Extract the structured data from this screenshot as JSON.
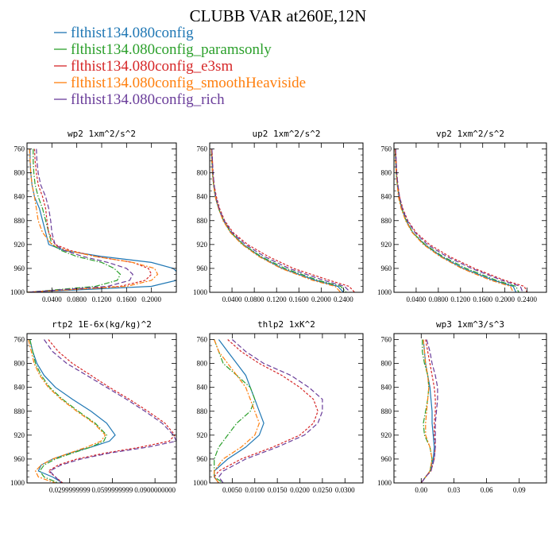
{
  "figure": {
    "title": "CLUBB VAR at260E,12N"
  },
  "chart_data": {
    "type": "line",
    "title": "CLUBB VAR at260E,12N",
    "legend": {
      "placement": "top-left",
      "entries": [
        {
          "name": "flthist134.080config",
          "color": "#1f77b4"
        },
        {
          "name": "flthist134.080config_paramsonly",
          "color": "#2ca02c"
        },
        {
          "name": "flthist134.080config_e3sm",
          "color": "#d62728"
        },
        {
          "name": "flthist134.080config_smoothHeaviside",
          "color": "#ff7f0e"
        },
        {
          "name": "flthist134.080config_rich",
          "color": "#6a3d9a"
        }
      ]
    },
    "y_axis": {
      "label": "",
      "range": [
        1000,
        750
      ],
      "ticks": [
        760,
        800,
        840,
        880,
        920,
        960,
        1000
      ]
    },
    "panels": [
      {
        "title": "wp2   1xm^2/s^2",
        "xlim": [
          0,
          0.24
        ],
        "xticks": [
          {
            "v": 0.04,
            "label": "0.0400"
          },
          {
            "v": 0.08,
            "label": "0.0800"
          },
          {
            "v": 0.12,
            "label": "0.1200"
          },
          {
            "v": 0.16,
            "label": "0.1600"
          },
          {
            "v": 0.2,
            "label": "0.2000"
          }
        ],
        "y": [
          760,
          780,
          800,
          820,
          840,
          860,
          880,
          900,
          920,
          930,
          940,
          950,
          960,
          970,
          980,
          990,
          1000
        ],
        "series": [
          {
            "values": [
              0.005,
              0.005,
              0.006,
              0.008,
              0.012,
              0.02,
              0.025,
              0.03,
              0.035,
              0.06,
              0.12,
              0.2,
              0.235,
              0.245,
              0.24,
              0.2,
              0.0
            ]
          },
          {
            "values": [
              0.01,
              0.01,
              0.011,
              0.013,
              0.018,
              0.025,
              0.03,
              0.035,
              0.04,
              0.055,
              0.08,
              0.12,
              0.14,
              0.15,
              0.145,
              0.11,
              0.0
            ]
          },
          {
            "values": [
              0.012,
              0.013,
              0.015,
              0.018,
              0.025,
              0.03,
              0.032,
              0.035,
              0.045,
              0.07,
              0.11,
              0.17,
              0.195,
              0.2,
              0.19,
              0.15,
              0.0
            ]
          },
          {
            "values": [
              0.004,
              0.005,
              0.006,
              0.008,
              0.012,
              0.015,
              0.018,
              0.025,
              0.04,
              0.065,
              0.11,
              0.17,
              0.205,
              0.21,
              0.2,
              0.16,
              0.0
            ]
          },
          {
            "values": [
              0.015,
              0.016,
              0.018,
              0.022,
              0.03,
              0.035,
              0.038,
              0.04,
              0.045,
              0.06,
              0.09,
              0.13,
              0.16,
              0.17,
              0.165,
              0.13,
              0.0
            ]
          }
        ]
      },
      {
        "title": "up2   1xm^2/s^2",
        "xlim": [
          0,
          0.275
        ],
        "xticks": [
          {
            "v": 0.04,
            "label": "0.0400"
          },
          {
            "v": 0.08,
            "label": "0.0800"
          },
          {
            "v": 0.12,
            "label": "0.1200"
          },
          {
            "v": 0.16,
            "label": "0.1600"
          },
          {
            "v": 0.2,
            "label": "0.2000"
          },
          {
            "v": 0.24,
            "label": "0.2400"
          }
        ],
        "y": [
          760,
          780,
          800,
          820,
          840,
          860,
          880,
          900,
          920,
          940,
          960,
          980,
          990,
          1000
        ],
        "series": [
          {
            "values": [
              0.003,
              0.004,
              0.005,
              0.007,
              0.01,
              0.016,
              0.025,
              0.038,
              0.06,
              0.09,
              0.13,
              0.19,
              0.23,
              0.24
            ]
          },
          {
            "values": [
              0.003,
              0.004,
              0.005,
              0.007,
              0.01,
              0.016,
              0.025,
              0.038,
              0.06,
              0.092,
              0.135,
              0.195,
              0.235,
              0.245
            ]
          },
          {
            "values": [
              0.004,
              0.005,
              0.006,
              0.008,
              0.012,
              0.018,
              0.027,
              0.042,
              0.068,
              0.105,
              0.15,
              0.215,
              0.25,
              0.26
            ]
          },
          {
            "values": [
              0.003,
              0.004,
              0.005,
              0.007,
              0.01,
              0.016,
              0.024,
              0.037,
              0.058,
              0.088,
              0.128,
              0.185,
              0.225,
              0.235
            ]
          },
          {
            "values": [
              0.004,
              0.005,
              0.006,
              0.008,
              0.011,
              0.017,
              0.026,
              0.04,
              0.064,
              0.098,
              0.142,
              0.205,
              0.242,
              0.252
            ]
          }
        ]
      },
      {
        "title": "vp2   1xm^2/s^2",
        "xlim": [
          0,
          0.275
        ],
        "xticks": [
          {
            "v": 0.04,
            "label": "0.0400"
          },
          {
            "v": 0.08,
            "label": "0.0800"
          },
          {
            "v": 0.12,
            "label": "0.1200"
          },
          {
            "v": 0.16,
            "label": "0.1600"
          },
          {
            "v": 0.2,
            "label": "0.2000"
          },
          {
            "v": 0.24,
            "label": "0.2400"
          }
        ],
        "y": [
          760,
          780,
          800,
          820,
          840,
          860,
          880,
          900,
          920,
          940,
          960,
          980,
          990,
          1000
        ],
        "series": [
          {
            "values": [
              0.002,
              0.003,
              0.004,
              0.006,
              0.009,
              0.014,
              0.022,
              0.034,
              0.055,
              0.085,
              0.125,
              0.18,
              0.215,
              0.22
            ]
          },
          {
            "values": [
              0.002,
              0.003,
              0.004,
              0.006,
              0.009,
              0.014,
              0.022,
              0.034,
              0.056,
              0.088,
              0.13,
              0.185,
              0.22,
              0.225
            ]
          },
          {
            "values": [
              0.003,
              0.004,
              0.005,
              0.007,
              0.01,
              0.016,
              0.025,
              0.04,
              0.064,
              0.1,
              0.145,
              0.2,
              0.235,
              0.24
            ]
          },
          {
            "values": [
              0.002,
              0.003,
              0.004,
              0.006,
              0.008,
              0.013,
              0.021,
              0.033,
              0.053,
              0.083,
              0.122,
              0.175,
              0.21,
              0.215
            ]
          },
          {
            "values": [
              0.003,
              0.004,
              0.005,
              0.007,
              0.01,
              0.015,
              0.024,
              0.038,
              0.06,
              0.095,
              0.14,
              0.195,
              0.228,
              0.232
            ]
          }
        ]
      },
      {
        "title": "rtp2   1E-6x(kg/kg)^2",
        "xlim": [
          0,
          0.105
        ],
        "xticks": [
          {
            "v": 0.03,
            "label": "0.0299999999"
          },
          {
            "v": 0.06,
            "label": "0.0599999999"
          },
          {
            "v": 0.09,
            "label": "0.0900000000"
          }
        ],
        "y": [
          760,
          780,
          800,
          820,
          840,
          860,
          880,
          900,
          920,
          930,
          940,
          950,
          960,
          970,
          980,
          990,
          1000
        ],
        "series": [
          {
            "values": [
              0.002,
              0.004,
              0.007,
              0.012,
              0.02,
              0.032,
              0.045,
              0.056,
              0.062,
              0.058,
              0.045,
              0.03,
              0.018,
              0.01,
              0.008,
              0.018,
              0.025
            ]
          },
          {
            "values": [
              0.002,
              0.004,
              0.006,
              0.01,
              0.016,
              0.025,
              0.036,
              0.048,
              0.056,
              0.054,
              0.045,
              0.032,
              0.02,
              0.012,
              0.009,
              0.012,
              0.022
            ]
          },
          {
            "values": [
              0.015,
              0.022,
              0.032,
              0.045,
              0.058,
              0.072,
              0.085,
              0.097,
              0.104,
              0.1,
              0.08,
              0.055,
              0.035,
              0.022,
              0.015,
              0.02,
              0.025
            ]
          },
          {
            "values": [
              0.001,
              0.003,
              0.005,
              0.009,
              0.015,
              0.024,
              0.035,
              0.047,
              0.055,
              0.052,
              0.042,
              0.03,
              0.018,
              0.01,
              0.006,
              0.008,
              0.02
            ]
          },
          {
            "values": [
              0.012,
              0.018,
              0.028,
              0.042,
              0.056,
              0.07,
              0.083,
              0.095,
              0.103,
              0.105,
              0.085,
              0.058,
              0.038,
              0.024,
              0.016,
              0.02,
              0.024
            ]
          }
        ]
      },
      {
        "title": "thlp2   1xK^2",
        "xlim": [
          0,
          0.034
        ],
        "xticks": [
          {
            "v": 0.005,
            "label": "0.0050"
          },
          {
            "v": 0.01,
            "label": "0.0100"
          },
          {
            "v": 0.015,
            "label": "0.0150"
          },
          {
            "v": 0.02,
            "label": "0.0200"
          },
          {
            "v": 0.025,
            "label": "0.0250"
          },
          {
            "v": 0.03,
            "label": "0.0300"
          }
        ],
        "y": [
          760,
          780,
          800,
          820,
          840,
          860,
          880,
          900,
          920,
          940,
          960,
          980,
          990,
          1000
        ],
        "series": [
          {
            "values": [
              0.002,
              0.004,
              0.006,
              0.008,
              0.009,
              0.01,
              0.011,
              0.012,
              0.011,
              0.008,
              0.004,
              0.001,
              0.001,
              0.002
            ]
          },
          {
            "values": [
              0.001,
              0.002,
              0.003,
              0.006,
              0.009,
              0.01,
              0.009,
              0.006,
              0.004,
              0.002,
              0.001,
              0.001,
              0.001,
              0.003
            ]
          },
          {
            "values": [
              0.004,
              0.007,
              0.011,
              0.016,
              0.02,
              0.023,
              0.024,
              0.023,
              0.02,
              0.014,
              0.007,
              0.002,
              0.001,
              0.002
            ]
          },
          {
            "values": [
              0.001,
              0.002,
              0.004,
              0.006,
              0.008,
              0.009,
              0.01,
              0.011,
              0.01,
              0.007,
              0.003,
              0.001,
              0.001,
              0.002
            ]
          },
          {
            "values": [
              0.005,
              0.008,
              0.012,
              0.018,
              0.022,
              0.025,
              0.025,
              0.024,
              0.021,
              0.015,
              0.008,
              0.003,
              0.002,
              0.003
            ]
          }
        ]
      },
      {
        "title": "wp3   1xm^3/s^3",
        "xlim": [
          -0.025,
          0.115
        ],
        "xticks": [
          {
            "v": 0.0,
            "label": "0.00"
          },
          {
            "v": 0.03,
            "label": "0.03"
          },
          {
            "v": 0.06,
            "label": "0.06"
          },
          {
            "v": 0.09,
            "label": "0.09"
          }
        ],
        "y": [
          760,
          780,
          800,
          820,
          840,
          860,
          880,
          900,
          920,
          940,
          960,
          980,
          990,
          1000
        ],
        "series": [
          {
            "values": [
              0.002,
              0.003,
              0.004,
              0.006,
              0.008,
              0.009,
              0.01,
              0.01,
              0.011,
              0.012,
              0.011,
              0.008,
              0.004,
              0.0
            ]
          },
          {
            "values": [
              0.001,
              0.001,
              0.003,
              0.006,
              0.007,
              0.006,
              0.004,
              0.002,
              0.003,
              0.008,
              0.01,
              0.008,
              0.004,
              0.0
            ]
          },
          {
            "values": [
              0.004,
              0.006,
              0.008,
              0.01,
              0.012,
              0.013,
              0.013,
              0.012,
              0.012,
              0.013,
              0.012,
              0.009,
              0.004,
              0.0
            ]
          },
          {
            "values": [
              0.002,
              0.003,
              0.004,
              0.006,
              0.007,
              0.006,
              0.005,
              0.004,
              0.004,
              0.008,
              0.01,
              0.008,
              0.004,
              0.0
            ]
          },
          {
            "values": [
              0.005,
              0.008,
              0.01,
              0.013,
              0.015,
              0.015,
              0.014,
              0.013,
              0.013,
              0.013,
              0.012,
              0.009,
              0.004,
              0.0
            ]
          }
        ]
      }
    ]
  }
}
